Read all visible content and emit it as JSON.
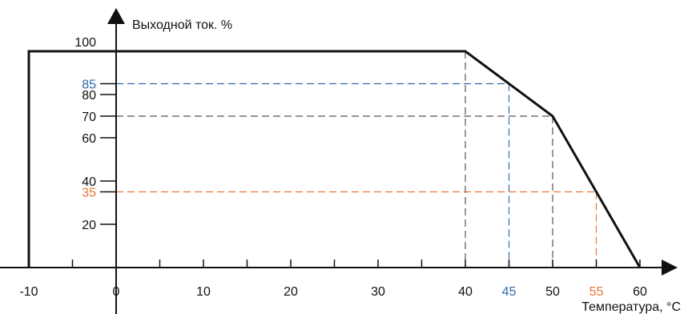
{
  "chart_data": {
    "type": "line",
    "title": "",
    "xlabel": "Температура, °С",
    "ylabel": "Выходной ток. %",
    "xlim": [
      -10,
      60
    ],
    "ylim": [
      0,
      100
    ],
    "x_ticks": [
      {
        "value": -10,
        "label": "-10",
        "color": "#111111"
      },
      {
        "value": 0,
        "label": "0",
        "color": "#111111"
      },
      {
        "value": 10,
        "label": "10",
        "color": "#111111"
      },
      {
        "value": 20,
        "label": "20",
        "color": "#111111"
      },
      {
        "value": 30,
        "label": "30",
        "color": "#111111"
      },
      {
        "value": 40,
        "label": "40",
        "color": "#111111"
      },
      {
        "value": 45,
        "label": "45",
        "color": "#2e6aa8"
      },
      {
        "value": 50,
        "label": "50",
        "color": "#111111"
      },
      {
        "value": 55,
        "label": "55",
        "color": "#e8773a"
      },
      {
        "value": 60,
        "label": "60",
        "color": "#111111"
      }
    ],
    "x_minor_ticks": [
      -5,
      5,
      15,
      25,
      35
    ],
    "y_ticks": [
      {
        "value": 100,
        "label": "100",
        "color": "#111111"
      },
      {
        "value": 85,
        "label": "85",
        "color": "#2e6aa8"
      },
      {
        "value": 80,
        "label": "80",
        "color": "#111111"
      },
      {
        "value": 70,
        "label": "70",
        "color": "#111111"
      },
      {
        "value": 60,
        "label": "60",
        "color": "#111111"
      },
      {
        "value": 40,
        "label": "40",
        "color": "#111111"
      },
      {
        "value": 35,
        "label": "35",
        "color": "#e8773a"
      },
      {
        "value": 20,
        "label": "20",
        "color": "#111111"
      }
    ],
    "series": [
      {
        "color": "#111111",
        "points": [
          [
            -10,
            0
          ],
          [
            -10,
            100
          ],
          [
            40,
            100
          ],
          [
            50,
            70
          ],
          [
            60,
            0
          ]
        ]
      }
    ],
    "guides": [
      {
        "x": 40,
        "y": 100,
        "color": "#555555"
      },
      {
        "x": 45,
        "y": 85,
        "color": "#2e6aa8"
      },
      {
        "x": 50,
        "y": 70,
        "color": "#555555"
      },
      {
        "x": 55,
        "y": 35,
        "color": "#e8773a"
      }
    ],
    "grid": false,
    "legend": "none"
  }
}
